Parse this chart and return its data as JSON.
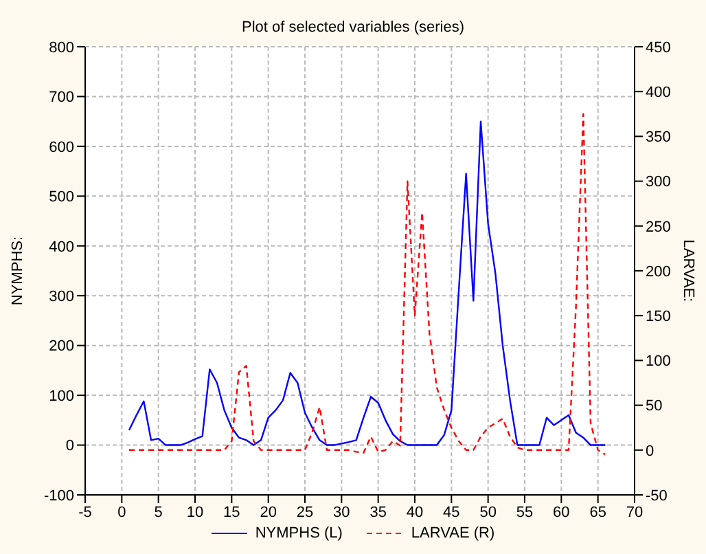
{
  "chart_data": {
    "type": "line",
    "title": "Plot of selected variables (series)",
    "ylabel": "NYMPHS:",
    "y2label": "LARVAE:",
    "x": [
      1,
      2,
      3,
      4,
      5,
      6,
      7,
      8,
      9,
      10,
      11,
      12,
      13,
      14,
      15,
      16,
      17,
      18,
      19,
      20,
      21,
      22,
      23,
      24,
      25,
      26,
      27,
      28,
      29,
      30,
      31,
      32,
      33,
      34,
      35,
      36,
      37,
      38,
      39,
      40,
      41,
      42,
      43,
      44,
      45,
      46,
      47,
      48,
      49,
      50,
      51,
      52,
      53,
      54,
      55,
      56,
      57,
      58,
      59,
      60,
      61,
      62,
      63,
      64,
      65,
      66
    ],
    "series": [
      {
        "name": "NYMPHS (L)",
        "color": "#0000ff",
        "line_style": "solid",
        "values": [
          30,
          60,
          88,
          10,
          13,
          0,
          0,
          0,
          5,
          12,
          18,
          152,
          125,
          70,
          35,
          15,
          10,
          0,
          10,
          55,
          70,
          90,
          145,
          125,
          65,
          35,
          10,
          0,
          0,
          3,
          6,
          10,
          55,
          97,
          85,
          50,
          22,
          8,
          0,
          0,
          0,
          0,
          0,
          20,
          70,
          310,
          545,
          290,
          650,
          445,
          345,
          200,
          90,
          0,
          0,
          0,
          0,
          55,
          40,
          50,
          60,
          25,
          15,
          0,
          0,
          0
        ]
      },
      {
        "name": "LARVAE (R)",
        "color": "#ff0000",
        "line_style": "dashed",
        "axis": "y2",
        "values": [
          0,
          0,
          0,
          0,
          0,
          0,
          0,
          0,
          0,
          0,
          0,
          0,
          0,
          0,
          10,
          87,
          94,
          10,
          0,
          0,
          0,
          0,
          0,
          0,
          0,
          20,
          48,
          0,
          0,
          0,
          0,
          -2,
          -3,
          15,
          -2,
          0,
          10,
          5,
          300,
          150,
          265,
          130,
          70,
          45,
          25,
          10,
          0,
          0,
          15,
          25,
          30,
          35,
          15,
          3,
          0,
          0,
          0,
          0,
          0,
          0,
          0,
          160,
          375,
          30,
          0,
          -5
        ]
      }
    ],
    "xlim": [
      -5,
      70
    ],
    "xticks": [
      -5,
      0,
      5,
      10,
      15,
      20,
      25,
      30,
      35,
      40,
      45,
      50,
      55,
      60,
      65,
      70
    ],
    "ylim": [
      -100,
      800
    ],
    "yticks": [
      -100,
      0,
      100,
      200,
      300,
      400,
      500,
      600,
      700,
      800
    ],
    "y2lim": [
      -50,
      450
    ],
    "y2ticks": [
      -50,
      0,
      50,
      100,
      150,
      200,
      250,
      300,
      350,
      400,
      450
    ],
    "grid": true,
    "legend": "bottom",
    "marker": "none"
  }
}
